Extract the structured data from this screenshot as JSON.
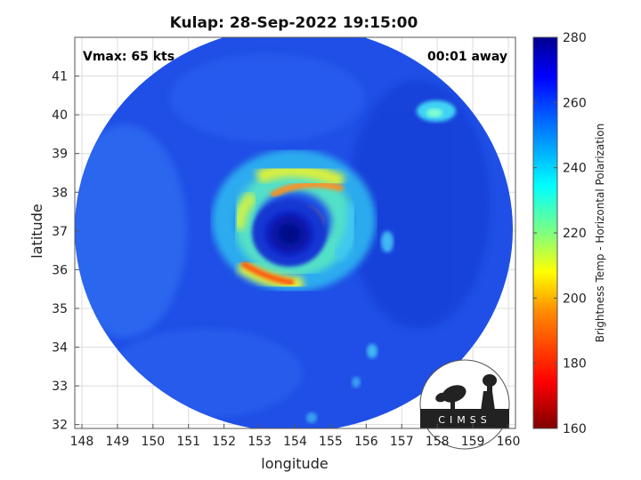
{
  "title": "Kulap: 28-Sep-2022 19:15:00",
  "vmax_label": "Vmax: 65 kts",
  "time_label": "00:01 away",
  "xaxis": {
    "label": "longitude",
    "range": [
      147.8,
      160.2
    ],
    "ticks": [
      "148",
      "149",
      "150",
      "151",
      "152",
      "153",
      "154",
      "155",
      "156",
      "157",
      "158",
      "159",
      "160"
    ]
  },
  "yaxis": {
    "label": "latitude",
    "range": [
      31.9,
      42.0
    ],
    "ticks": [
      "32",
      "33",
      "34",
      "35",
      "36",
      "37",
      "38",
      "39",
      "40",
      "41"
    ]
  },
  "colorbar": {
    "label": "Brightness Temp - Horizontal Polarization",
    "range": [
      160,
      280
    ],
    "ticks": [
      "160",
      "180",
      "200",
      "220",
      "240",
      "260",
      "280"
    ],
    "colors": [
      "#7f0000",
      "#ff0000",
      "#ff8c00",
      "#ffff00",
      "#7fff7f",
      "#00ffff",
      "#0080ff",
      "#0000ff",
      "#00008f"
    ]
  },
  "logo": {
    "text": "CIMSS"
  },
  "storm_center": {
    "lon": 153.8,
    "lat": 36.8
  }
}
